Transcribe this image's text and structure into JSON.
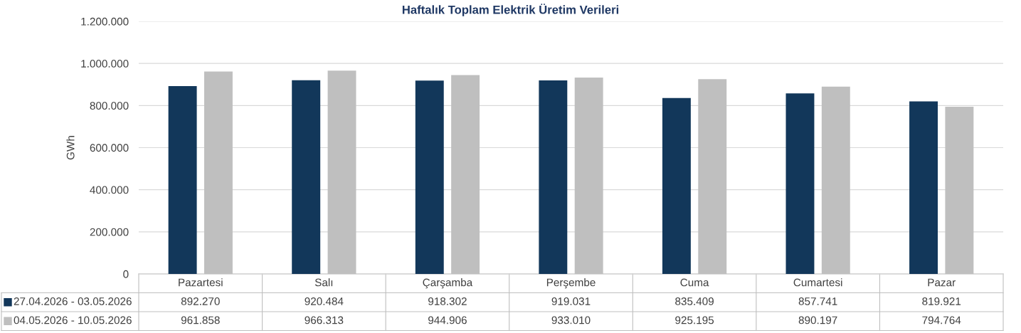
{
  "chart_data": {
    "type": "bar",
    "title": "Haftalık Toplam Elektrik Üretim Verileri",
    "ylabel": "GWh",
    "categories": [
      "Pazartesi",
      "Salı",
      "Çarşamba",
      "Perşembe",
      "Cuma",
      "Cumartesi",
      "Pazar"
    ],
    "series": [
      {
        "name": "27.04.2026 - 03.05.2026",
        "color": "#12375a",
        "values": [
          892270,
          920484,
          918302,
          919031,
          835409,
          857741,
          819921
        ],
        "value_labels": [
          "892.270",
          "920.484",
          "918.302",
          "919.031",
          "835.409",
          "857.741",
          "819.921"
        ]
      },
      {
        "name": "04.05.2026 - 10.05.2026",
        "color": "#bfbfbf",
        "values": [
          961858,
          966313,
          944906,
          933010,
          925195,
          890197,
          794764
        ],
        "value_labels": [
          "961.858",
          "966.313",
          "944.906",
          "933.010",
          "925.195",
          "890.197",
          "794.764"
        ]
      }
    ],
    "ylim": [
      0,
      1200000
    ],
    "yticks": [
      0,
      {
        "value": 200000,
        "label": "200.000"
      },
      {
        "value": 400000,
        "label": "400.000"
      },
      {
        "value": 600000,
        "label": "600.000"
      },
      {
        "value": 800000,
        "label": "800.000"
      },
      {
        "value": 1000000,
        "label": "1.000.000"
      },
      {
        "value": 1200000,
        "label": "1.200.000"
      }
    ],
    "grid": "y",
    "legend": "bottom"
  }
}
